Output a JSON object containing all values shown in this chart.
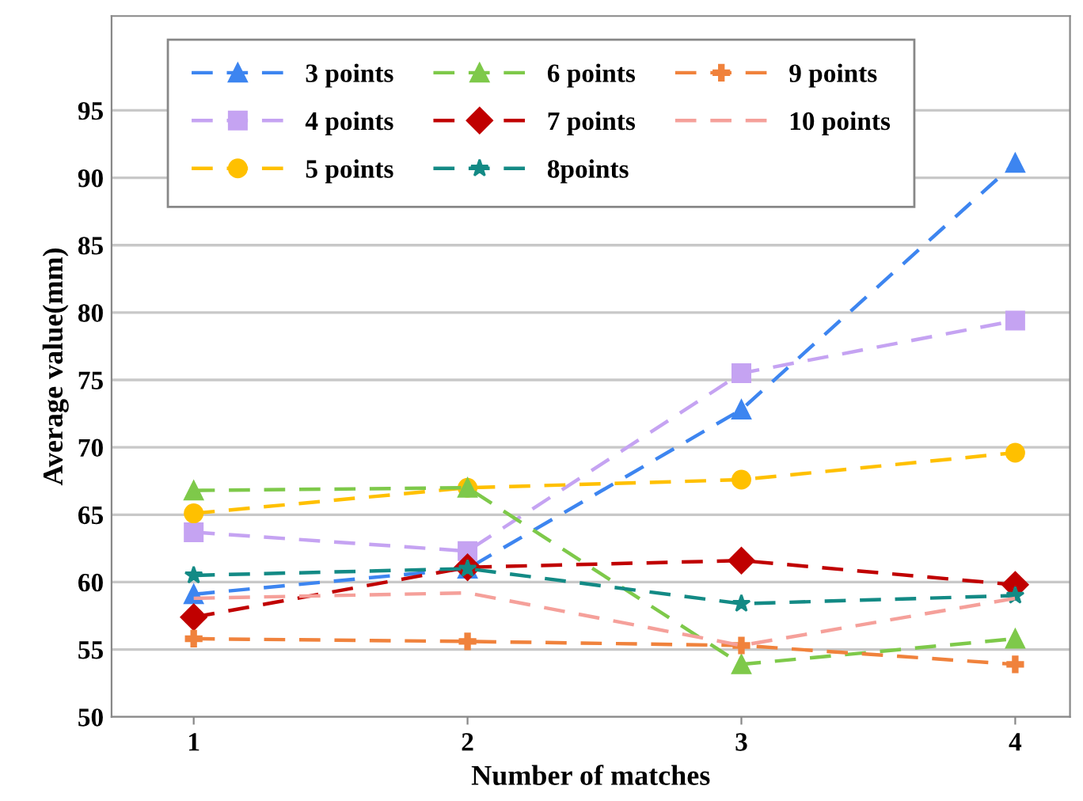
{
  "chart_data": {
    "type": "line",
    "xlabel": "Number of matches",
    "ylabel": "Average value(mm)",
    "x": [
      1,
      2,
      3,
      4
    ],
    "xlim": [
      0.7,
      4.2
    ],
    "xticks": [
      1,
      2,
      3,
      4
    ],
    "ylim": [
      50,
      102
    ],
    "yticks": [
      50,
      55,
      60,
      65,
      70,
      75,
      80,
      85,
      90,
      95
    ],
    "grid": "y",
    "legend": "top left",
    "line_style": "dashed",
    "series": [
      {
        "name": "3 points",
        "color": "#3d85f0",
        "marker": "triangle",
        "values": [
          59.1,
          61.0,
          72.8,
          91.1
        ]
      },
      {
        "name": "4 points",
        "color": "#c5a3f2",
        "marker": "square",
        "values": [
          63.7,
          62.3,
          75.5,
          79.4
        ]
      },
      {
        "name": "5 points",
        "color": "#ffc000",
        "marker": "circle",
        "values": [
          65.1,
          67.0,
          67.6,
          69.6
        ]
      },
      {
        "name": "6 points",
        "color": "#7ec94a",
        "marker": "triangle",
        "values": [
          66.8,
          67.0,
          53.9,
          55.8
        ]
      },
      {
        "name": "7 points",
        "color": "#c00000",
        "marker": "diamond",
        "values": [
          57.4,
          61.1,
          61.6,
          59.8
        ]
      },
      {
        "name": "8points",
        "color": "#138a85",
        "marker": "star",
        "values": [
          60.5,
          61.0,
          58.4,
          59.0
        ]
      },
      {
        "name": "9 points",
        "color": "#f0823c",
        "marker": "cross",
        "values": [
          55.8,
          55.6,
          55.3,
          53.9
        ]
      },
      {
        "name": "10 points",
        "color": "#f5a09a",
        "marker": "none",
        "values": [
          58.8,
          59.2,
          55.3,
          58.8
        ]
      }
    ]
  }
}
